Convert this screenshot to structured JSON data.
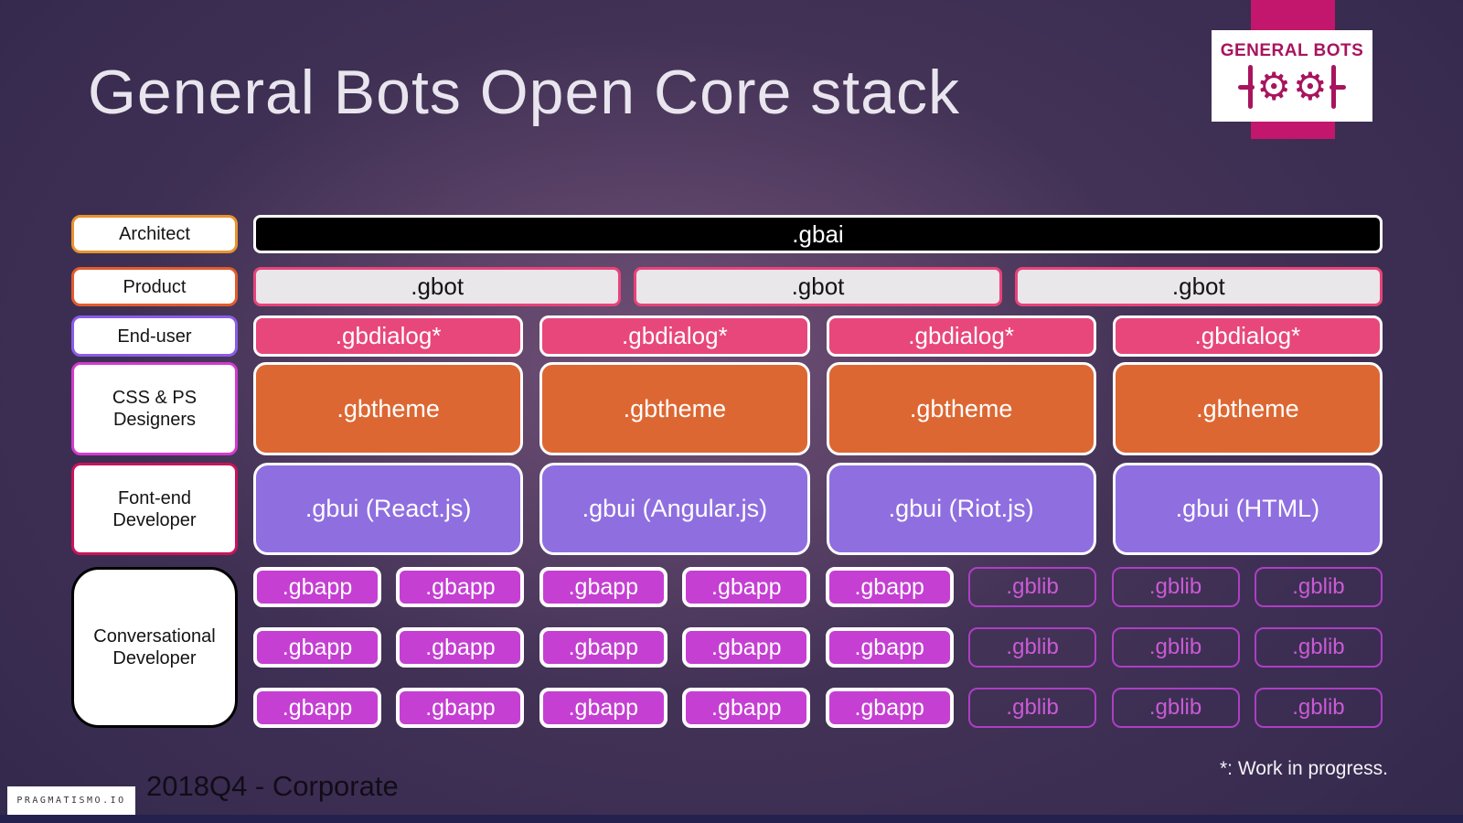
{
  "title": "General Bots Open Core stack",
  "logo": {
    "brand": "GENERAL BOTS",
    "gear_glyph": "⚙"
  },
  "stack": {
    "rows": [
      {
        "label": "Architect",
        "items": [
          ".gbai"
        ]
      },
      {
        "label": "Product",
        "items": [
          ".gbot",
          ".gbot",
          ".gbot"
        ]
      },
      {
        "label": "End-user",
        "items": [
          ".gbdialog*",
          ".gbdialog*",
          ".gbdialog*",
          ".gbdialog*"
        ]
      },
      {
        "label": "CSS & PS Designers",
        "items": [
          ".gbtheme",
          ".gbtheme",
          ".gbtheme",
          ".gbtheme"
        ]
      },
      {
        "label": "Font-end Developer",
        "items": [
          ".gbui (React.js)",
          ".gbui (Angular.js)",
          ".gbui (Riot.js)",
          ".gbui (HTML)"
        ]
      },
      {
        "label": "Conversational Developer",
        "app_rows": [
          {
            "gbapp": [
              ".gbapp",
              ".gbapp",
              ".gbapp",
              ".gbapp",
              ".gbapp"
            ],
            "gblib": [
              ".gblib",
              ".gblib",
              ".gblib"
            ]
          },
          {
            "gbapp": [
              ".gbapp",
              ".gbapp",
              ".gbapp",
              ".gbapp",
              ".gbapp"
            ],
            "gblib": [
              ".gblib",
              ".gblib",
              ".gblib"
            ]
          },
          {
            "gbapp": [
              ".gbapp",
              ".gbapp",
              ".gbapp",
              ".gbapp",
              ".gbapp"
            ],
            "gblib": [
              ".gblib",
              ".gblib",
              ".gblib"
            ]
          }
        ]
      }
    ]
  },
  "footer": {
    "vendor_logo": "PRAGMATISMO.IO",
    "caption": "2018Q4 - Corporate",
    "note": "*: Work in progress."
  },
  "colors": {
    "accent_ribbon": "#c2176c",
    "logo_text": "#a8145e",
    "gbai_bg": "#000000",
    "gbot_bg": "#e9e7e9",
    "gbot_border": "#e8437a",
    "gbdialog_bg": "#e8477c",
    "gbtheme_bg": "#dd6732",
    "gbui_bg": "#8f6ee0",
    "gbapp_bg": "#c53fd3",
    "gblib_border": "#ad3ec3"
  }
}
